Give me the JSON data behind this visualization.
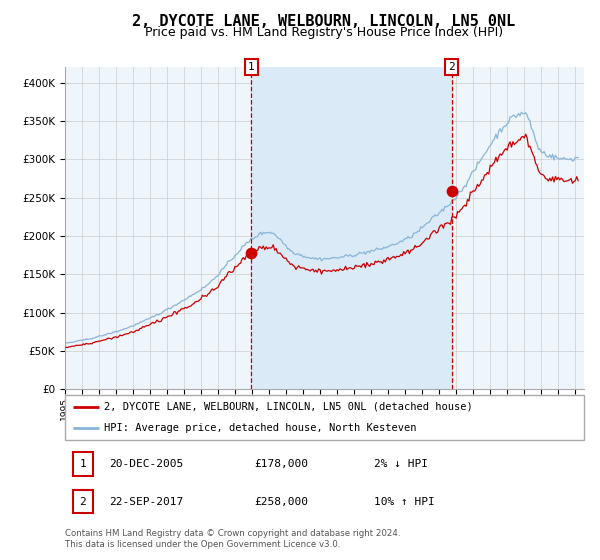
{
  "title": "2, DYCOTE LANE, WELBOURN, LINCOLN, LN5 0NL",
  "subtitle": "Price paid vs. HM Land Registry's House Price Index (HPI)",
  "ylim": [
    0,
    420000
  ],
  "xlim_start": 1995.0,
  "xlim_end": 2025.5,
  "yticks": [
    0,
    50000,
    100000,
    150000,
    200000,
    250000,
    300000,
    350000,
    400000
  ],
  "ytick_labels": [
    "£0",
    "£50K",
    "£100K",
    "£150K",
    "£200K",
    "£250K",
    "£300K",
    "£350K",
    "£400K"
  ],
  "xticks": [
    1995,
    1996,
    1997,
    1998,
    1999,
    2000,
    2001,
    2002,
    2003,
    2004,
    2005,
    2006,
    2007,
    2008,
    2009,
    2010,
    2011,
    2012,
    2013,
    2014,
    2015,
    2016,
    2017,
    2018,
    2019,
    2020,
    2021,
    2022,
    2023,
    2024,
    2025
  ],
  "sale1_x": 2005.97,
  "sale1_y": 178000,
  "sale1_label": "1",
  "sale2_x": 2017.73,
  "sale2_y": 258000,
  "sale2_label": "2",
  "shade_color": "#daeaf7",
  "hpi_color": "#8ab4d8",
  "price_color": "#cc0000",
  "dot_color": "#cc0000",
  "grid_color": "#cccccc",
  "chart_bg": "#eef5fb",
  "title_fontsize": 11,
  "subtitle_fontsize": 9,
  "legend_label1": "2, DYCOTE LANE, WELBOURN, LINCOLN, LN5 0NL (detached house)",
  "legend_label2": "HPI: Average price, detached house, North Kesteven",
  "annotation1_date": "20-DEC-2005",
  "annotation1_price": "£178,000",
  "annotation1_hpi": "2% ↓ HPI",
  "annotation2_date": "22-SEP-2017",
  "annotation2_price": "£258,000",
  "annotation2_hpi": "10% ↑ HPI",
  "footer": "Contains HM Land Registry data © Crown copyright and database right 2024.\nThis data is licensed under the Open Government Licence v3.0."
}
